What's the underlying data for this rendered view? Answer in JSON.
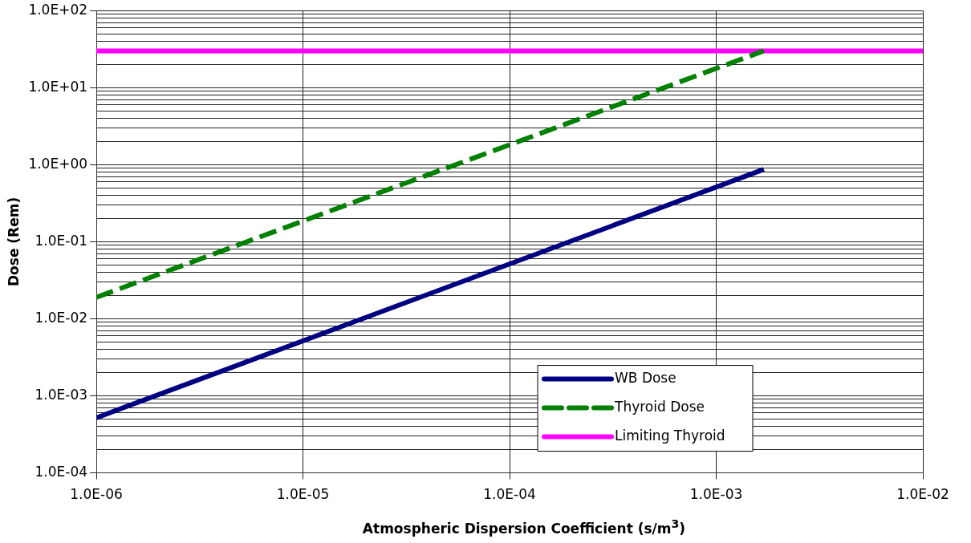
{
  "chart_data": {
    "type": "line",
    "xlabel": "Atmospheric Dispersion Coefficient (s/m$^{3}$)",
    "ylabel": "Dose (Rem)",
    "log": "xy",
    "grid": true,
    "legend": "bottom right",
    "marker": "none",
    "xlim": [
      1e-06,
      0.01
    ],
    "xticks": [
      {
        "value": 1e-06,
        "label": "1.0E-06"
      },
      {
        "value": 1e-05,
        "label": "1.0E-05"
      },
      {
        "value": 0.0001,
        "label": "1.0E-04"
      },
      {
        "value": 0.001,
        "label": "1.0E-03"
      },
      {
        "value": 0.01,
        "label": "1.0E-02"
      }
    ],
    "ylim": [
      0.0001,
      100
    ],
    "yticks": [
      {
        "value": 0.0001,
        "label": "1.0E-04"
      },
      {
        "value": 0.001,
        "label": "1.0E-03"
      },
      {
        "value": 0.01,
        "label": "1.0E-02"
      },
      {
        "value": 0.1,
        "label": "1.0E-01"
      },
      {
        "value": 1,
        "label": "1.0E+00"
      },
      {
        "value": 10,
        "label": "1.0E+01"
      },
      {
        "value": 100,
        "label": "1.0E+02"
      }
    ],
    "series": [
      {
        "name": "WB Dose",
        "color": "#000080",
        "line_style": "solid",
        "x": [
          1e-06,
          0.0017
        ],
        "values": [
          0.00052,
          0.87
        ]
      },
      {
        "name": "Thyroid Dose",
        "color": "#008000",
        "line_style": "dashed",
        "x": [
          1e-06,
          0.0017
        ],
        "values": [
          0.019,
          30
        ]
      },
      {
        "name": "Limiting Thyroid",
        "color": "#ff00ff",
        "line_style": "solid",
        "x": [
          1e-06,
          0.01
        ],
        "values": [
          30,
          30
        ]
      }
    ]
  }
}
